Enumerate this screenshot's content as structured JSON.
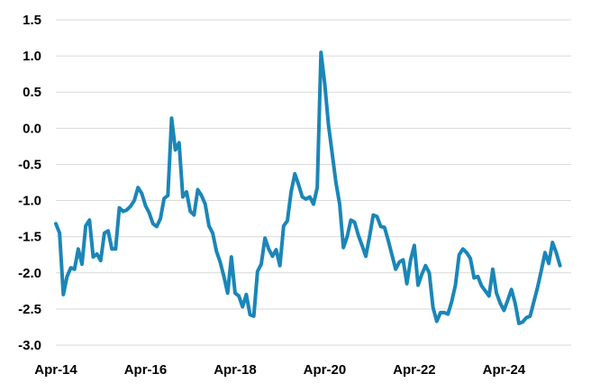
{
  "chart_data": {
    "type": "line",
    "title": "",
    "xlabel": "",
    "ylabel": "",
    "ylim": [
      -3.0,
      1.5
    ],
    "yticks": [
      1.5,
      1.0,
      0.5,
      0.0,
      -0.5,
      -1.0,
      -1.5,
      -2.0,
      -2.5,
      -3.0
    ],
    "ytick_labels": [
      "1.5",
      "1.0",
      "0.5",
      "0.0",
      "-0.5",
      "-1.0",
      "-1.5",
      "-2.0",
      "-2.5",
      "-3.0"
    ],
    "xlim": [
      "2014-04",
      "2025-10"
    ],
    "xticks": [
      "2014-04",
      "2016-04",
      "2018-04",
      "2020-04",
      "2022-04",
      "2024-04"
    ],
    "xtick_labels": [
      "Apr-14",
      "Apr-16",
      "Apr-18",
      "Apr-20",
      "Apr-22",
      "Apr-24"
    ],
    "grid": "horizontal",
    "line_color": "#1a86b8",
    "grid_color": "#d9d9d9",
    "series": [
      {
        "points": [
          [
            "2014-04",
            -1.32
          ],
          [
            "2014-05",
            -1.45
          ],
          [
            "2014-06",
            -2.3
          ],
          [
            "2014-07",
            -2.05
          ],
          [
            "2014-08",
            -1.93
          ],
          [
            "2014-09",
            -1.95
          ],
          [
            "2014-10",
            -1.67
          ],
          [
            "2014-11",
            -1.88
          ],
          [
            "2014-12",
            -1.35
          ],
          [
            "2015-01",
            -1.27
          ],
          [
            "2015-02",
            -1.78
          ],
          [
            "2015-03",
            -1.74
          ],
          [
            "2015-04",
            -1.83
          ],
          [
            "2015-05",
            -1.45
          ],
          [
            "2015-06",
            -1.42
          ],
          [
            "2015-07",
            -1.67
          ],
          [
            "2015-08",
            -1.67
          ],
          [
            "2015-09",
            -1.1
          ],
          [
            "2015-10",
            -1.15
          ],
          [
            "2015-11",
            -1.13
          ],
          [
            "2015-12",
            -1.08
          ],
          [
            "2016-01",
            -1.0
          ],
          [
            "2016-02",
            -0.82
          ],
          [
            "2016-03",
            -0.9
          ],
          [
            "2016-04",
            -1.07
          ],
          [
            "2016-05",
            -1.17
          ],
          [
            "2016-06",
            -1.32
          ],
          [
            "2016-07",
            -1.36
          ],
          [
            "2016-08",
            -1.25
          ],
          [
            "2016-09",
            -0.97
          ],
          [
            "2016-10",
            -0.93
          ],
          [
            "2016-11",
            0.14
          ],
          [
            "2016-12",
            -0.3
          ],
          [
            "2017-01",
            -0.2
          ],
          [
            "2017-02",
            -0.95
          ],
          [
            "2017-03",
            -0.88
          ],
          [
            "2017-04",
            -1.15
          ],
          [
            "2017-05",
            -1.2
          ],
          [
            "2017-06",
            -0.85
          ],
          [
            "2017-07",
            -0.93
          ],
          [
            "2017-08",
            -1.05
          ],
          [
            "2017-09",
            -1.35
          ],
          [
            "2017-10",
            -1.45
          ],
          [
            "2017-11",
            -1.7
          ],
          [
            "2017-12",
            -1.85
          ],
          [
            "2018-01",
            -2.05
          ],
          [
            "2018-02",
            -2.28
          ],
          [
            "2018-03",
            -1.78
          ],
          [
            "2018-04",
            -2.28
          ],
          [
            "2018-05",
            -2.32
          ],
          [
            "2018-06",
            -2.47
          ],
          [
            "2018-07",
            -2.3
          ],
          [
            "2018-08",
            -2.58
          ],
          [
            "2018-09",
            -2.6
          ],
          [
            "2018-10",
            -1.98
          ],
          [
            "2018-11",
            -1.88
          ],
          [
            "2018-12",
            -1.52
          ],
          [
            "2019-01",
            -1.67
          ],
          [
            "2019-02",
            -1.77
          ],
          [
            "2019-03",
            -1.68
          ],
          [
            "2019-04",
            -1.9
          ],
          [
            "2019-05",
            -1.35
          ],
          [
            "2019-06",
            -1.28
          ],
          [
            "2019-07",
            -0.88
          ],
          [
            "2019-08",
            -0.63
          ],
          [
            "2019-09",
            -0.78
          ],
          [
            "2019-10",
            -0.95
          ],
          [
            "2019-11",
            -0.98
          ],
          [
            "2019-12",
            -0.95
          ],
          [
            "2020-01",
            -1.05
          ],
          [
            "2020-02",
            -0.82
          ],
          [
            "2020-03",
            1.05
          ],
          [
            "2020-04",
            0.62
          ],
          [
            "2020-05",
            0.05
          ],
          [
            "2020-06",
            -0.35
          ],
          [
            "2020-07",
            -0.75
          ],
          [
            "2020-08",
            -1.05
          ],
          [
            "2020-09",
            -1.65
          ],
          [
            "2020-10",
            -1.5
          ],
          [
            "2020-11",
            -1.27
          ],
          [
            "2020-12",
            -1.3
          ],
          [
            "2021-01",
            -1.48
          ],
          [
            "2021-02",
            -1.62
          ],
          [
            "2021-03",
            -1.77
          ],
          [
            "2021-04",
            -1.5
          ],
          [
            "2021-05",
            -1.2
          ],
          [
            "2021-06",
            -1.22
          ],
          [
            "2021-07",
            -1.36
          ],
          [
            "2021-08",
            -1.37
          ],
          [
            "2021-09",
            -1.55
          ],
          [
            "2021-10",
            -1.75
          ],
          [
            "2021-11",
            -1.95
          ],
          [
            "2021-12",
            -1.85
          ],
          [
            "2022-01",
            -1.82
          ],
          [
            "2022-02",
            -2.15
          ],
          [
            "2022-03",
            -1.82
          ],
          [
            "2022-04",
            -1.62
          ],
          [
            "2022-05",
            -2.17
          ],
          [
            "2022-06",
            -2.02
          ],
          [
            "2022-07",
            -1.9
          ],
          [
            "2022-08",
            -2.0
          ],
          [
            "2022-09",
            -2.48
          ],
          [
            "2022-10",
            -2.67
          ],
          [
            "2022-11",
            -2.55
          ],
          [
            "2022-12",
            -2.55
          ],
          [
            "2023-01",
            -2.57
          ],
          [
            "2023-02",
            -2.4
          ],
          [
            "2023-03",
            -2.17
          ],
          [
            "2023-04",
            -1.75
          ],
          [
            "2023-05",
            -1.67
          ],
          [
            "2023-06",
            -1.72
          ],
          [
            "2023-07",
            -1.8
          ],
          [
            "2023-08",
            -2.07
          ],
          [
            "2023-09",
            -2.05
          ],
          [
            "2023-10",
            -2.18
          ],
          [
            "2023-11",
            -2.25
          ],
          [
            "2023-12",
            -2.32
          ],
          [
            "2024-01",
            -1.95
          ],
          [
            "2024-02",
            -2.28
          ],
          [
            "2024-03",
            -2.42
          ],
          [
            "2024-04",
            -2.52
          ],
          [
            "2024-05",
            -2.38
          ],
          [
            "2024-06",
            -2.23
          ],
          [
            "2024-07",
            -2.42
          ],
          [
            "2024-08",
            -2.7
          ],
          [
            "2024-09",
            -2.68
          ],
          [
            "2024-10",
            -2.62
          ],
          [
            "2024-11",
            -2.6
          ],
          [
            "2024-12",
            -2.4
          ],
          [
            "2025-01",
            -2.2
          ],
          [
            "2025-02",
            -1.97
          ],
          [
            "2025-03",
            -1.72
          ],
          [
            "2025-04",
            -1.87
          ],
          [
            "2025-05",
            -1.58
          ],
          [
            "2025-06",
            -1.72
          ],
          [
            "2025-07",
            -1.9
          ]
        ]
      }
    ]
  }
}
